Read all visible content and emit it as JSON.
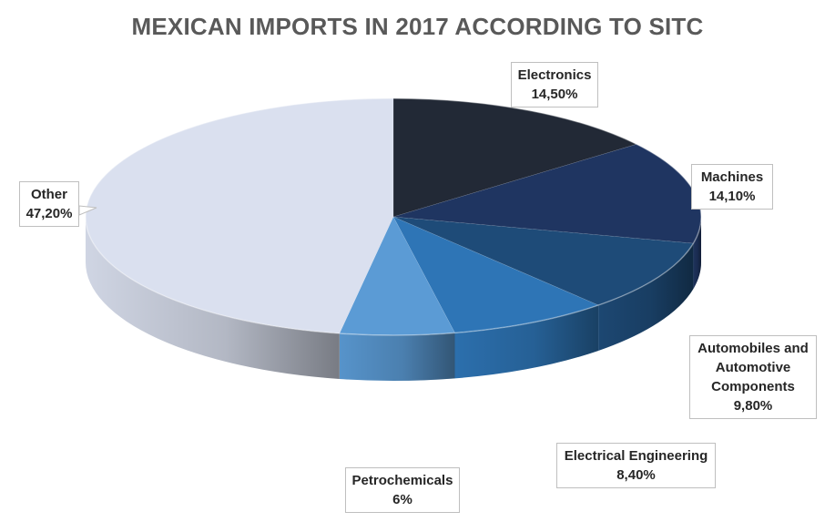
{
  "chart_data": {
    "type": "pie",
    "title": "MEXICAN IMPORTS IN 2017 ACCORDING TO SITC",
    "slices": [
      {
        "label": "Electronics",
        "value": 14.5,
        "display": "14,50%",
        "color": "#222936"
      },
      {
        "label": "Machines",
        "value": 14.1,
        "display": "14,10%",
        "color": "#1f3561"
      },
      {
        "label": "Automobiles and\nAutomotive\nComponents",
        "value": 9.8,
        "display": "9,80%",
        "color": "#1e4b78"
      },
      {
        "label": "Electrical Engineering",
        "value": 8.4,
        "display": "8,40%",
        "color": "#2e75b6"
      },
      {
        "label": "Petrochemicals",
        "value": 6,
        "display": "6%",
        "color": "#5b9bd5"
      },
      {
        "label": "Other",
        "value": 47.2,
        "display": "47,20%",
        "color": "#dae0ef"
      }
    ],
    "legend": "none",
    "style": "3d"
  }
}
